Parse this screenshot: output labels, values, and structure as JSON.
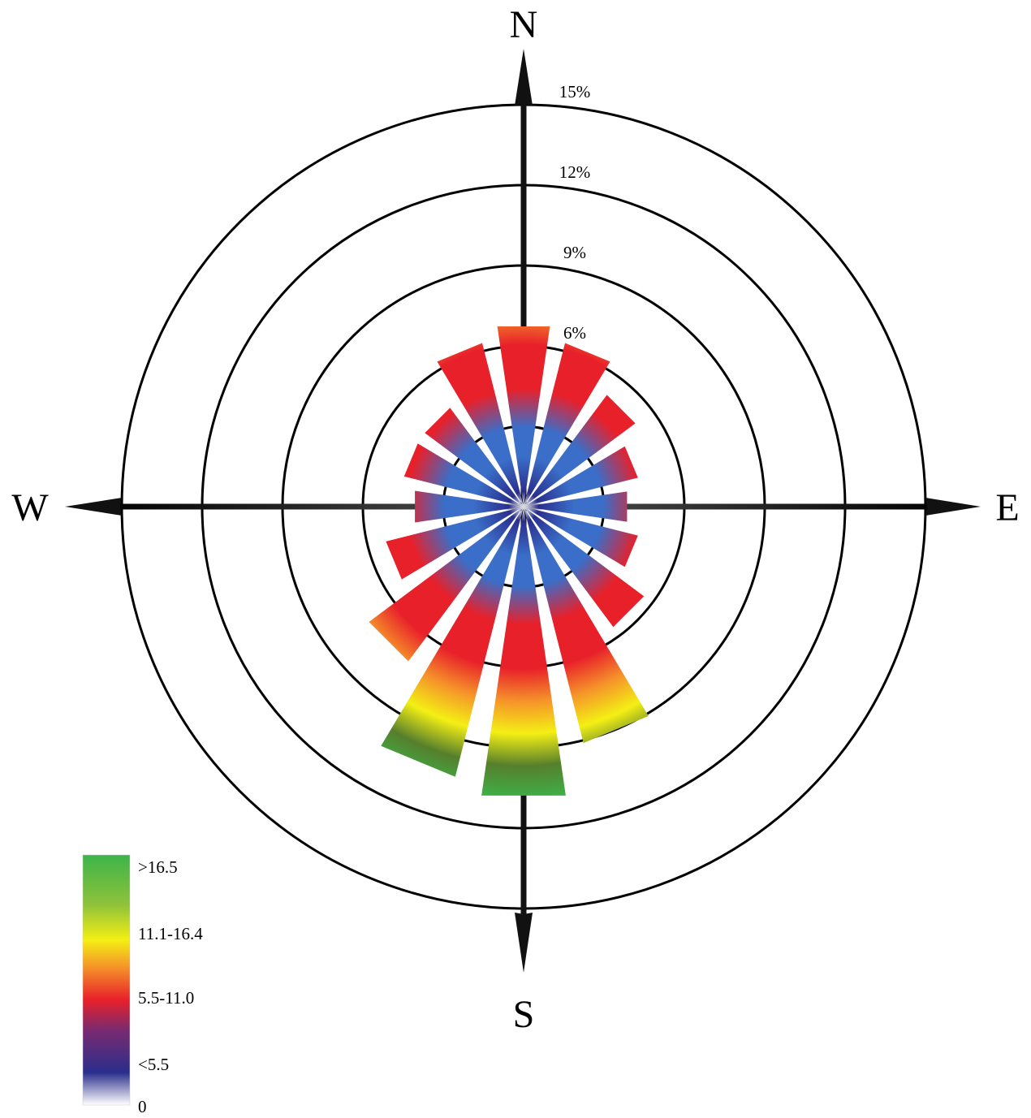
{
  "chart_data": {
    "type": "wind-rose",
    "directions": [
      "N",
      "NNE",
      "NE",
      "ENE",
      "E",
      "ESE",
      "SE",
      "SSE",
      "S",
      "SSW",
      "SW",
      "WSW",
      "W",
      "WNW",
      "NW",
      "NNW"
    ],
    "values": [
      6.8,
      6.3,
      5.2,
      4.4,
      3.9,
      4.4,
      5.6,
      9.1,
      10.9,
      10.4,
      7.2,
      5.3,
      4.1,
      4.6,
      4.6,
      6.3
    ],
    "unit": "%",
    "rings": [
      {
        "value": 6,
        "label": "6%"
      },
      {
        "value": 9,
        "label": "9%"
      },
      {
        "value": 12,
        "label": "12%"
      },
      {
        "value": 15,
        "label": "15%"
      }
    ],
    "rmax": 15,
    "compass": {
      "north": "N",
      "south": "S",
      "east": "E",
      "west": "W"
    },
    "colors": {
      "zero": "#ffffff",
      "low": "#2a2e8c",
      "blue": "#3a6ec8",
      "red": "#e8202a",
      "orange": "#f5922a",
      "yellow": "#f4ef14",
      "olive": "#567f2c",
      "green": "#3cb44a"
    },
    "legend": {
      "title": "",
      "entries": [
        ">16.5",
        "11.1-16.4",
        "5.5-11.0",
        "<5.5",
        "0"
      ]
    }
  }
}
